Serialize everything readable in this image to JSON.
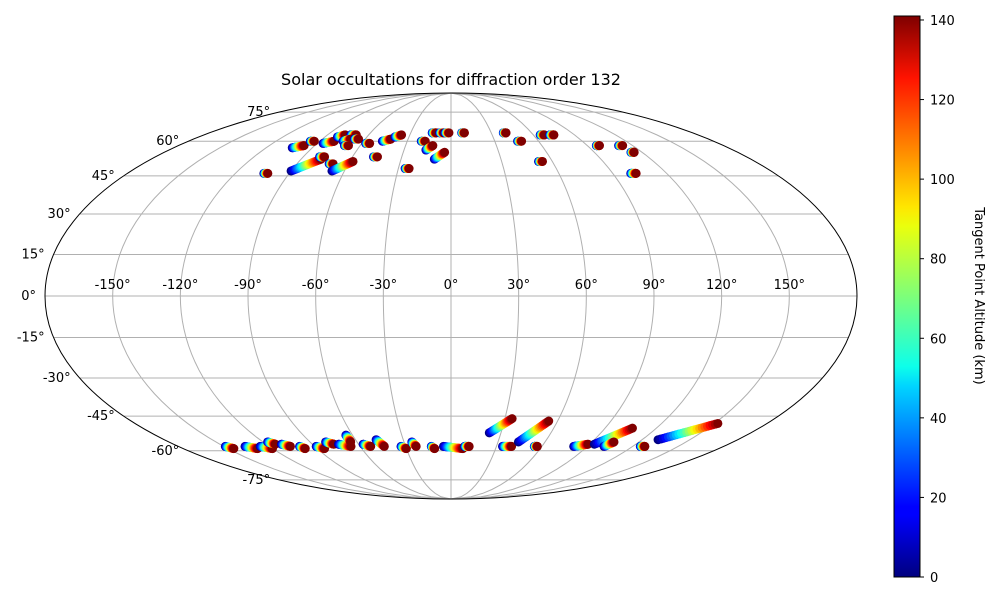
{
  "chart_data": {
    "type": "scatter",
    "projection": "mollweide",
    "title": "Solar occultations for diffraction order 132",
    "x_ticks": [
      "-150°",
      "-120°",
      "-90°",
      "-60°",
      "-30°",
      "0°",
      "30°",
      "60°",
      "90°",
      "120°",
      "150°"
    ],
    "x_tick_values": [
      -150,
      -120,
      -90,
      -60,
      -30,
      0,
      30,
      60,
      90,
      120,
      150
    ],
    "y_ticks": [
      "-75°",
      "-60°",
      "-45°",
      "-30°",
      "-15°",
      "0°",
      "15°",
      "30°",
      "45°",
      "60°",
      "75°"
    ],
    "y_tick_values": [
      -75,
      -60,
      -45,
      -30,
      -15,
      0,
      15,
      30,
      45,
      60,
      75
    ],
    "xlim": [
      -180,
      180
    ],
    "ylim": [
      -90,
      90
    ],
    "grid": true,
    "colorbar": {
      "label": "Tangent Point Altitude (km)",
      "range": [
        0,
        141
      ],
      "ticks": [
        "0",
        "20",
        "40",
        "60",
        "80",
        "100",
        "120",
        "140"
      ],
      "tick_values": [
        0,
        20,
        40,
        60,
        80,
        100,
        120,
        140
      ],
      "colormap": "jet"
    },
    "series": [
      {
        "lon": -103,
        "lat": 57,
        "lon2": -97,
        "lat2": 58
      },
      {
        "lon": -103,
        "lat": 46,
        "lon2": -103,
        "lat2": 46
      },
      {
        "lon": -95,
        "lat": 60,
        "lon2": -95,
        "lat2": 60
      },
      {
        "lon": -86,
        "lat": 59,
        "lon2": -80,
        "lat2": 60
      },
      {
        "lon": -90,
        "lat": 47,
        "lon2": -78,
        "lat2": 52
      },
      {
        "lon": -81,
        "lat": 62,
        "lon2": -77,
        "lat2": 63
      },
      {
        "lon": -80,
        "lat": 53,
        "lon2": -77,
        "lat2": 53
      },
      {
        "lon": -73,
        "lat": 63,
        "lon2": -69,
        "lat2": 63
      },
      {
        "lon": -74,
        "lat": 60,
        "lon2": -70,
        "lat2": 61
      },
      {
        "lon": -69,
        "lat": 58,
        "lon2": -69,
        "lat2": 58
      },
      {
        "lon": -70,
        "lat": 50,
        "lon2": -70,
        "lat2": 50
      },
      {
        "lon": -67,
        "lat": 47,
        "lon2": -58,
        "lat2": 51
      },
      {
        "lon": -66,
        "lat": 61,
        "lon2": -66,
        "lat2": 61
      },
      {
        "lon": -56,
        "lat": 59,
        "lon2": -56,
        "lat2": 59
      },
      {
        "lon": -47,
        "lat": 60,
        "lon2": -42,
        "lat2": 61
      },
      {
        "lon": -46,
        "lat": 53,
        "lon2": -46,
        "lat2": 53
      },
      {
        "lon": -40,
        "lat": 62,
        "lon2": -36,
        "lat2": 63
      },
      {
        "lon": -25,
        "lat": 48,
        "lon2": -25,
        "lat2": 48
      },
      {
        "lon": -19,
        "lat": 60,
        "lon2": -19,
        "lat2": 60
      },
      {
        "lon": -16,
        "lat": 56,
        "lon2": -12,
        "lat2": 58
      },
      {
        "lon": -14,
        "lat": 64,
        "lon2": -11,
        "lat2": 64
      },
      {
        "lon": -10,
        "lat": 52,
        "lon2": -4,
        "lat2": 55
      },
      {
        "lon": -7,
        "lat": 64,
        "lon2": -7,
        "lat2": 64
      },
      {
        "lon": -3,
        "lat": 64,
        "lon2": -3,
        "lat2": 64
      },
      {
        "lon": 8,
        "lat": 64,
        "lon2": 10,
        "lat2": 64
      },
      {
        "lon": 39,
        "lat": 64,
        "lon2": 41,
        "lat2": 64
      },
      {
        "lon": 47,
        "lat": 60,
        "lon2": 47,
        "lat2": 60
      },
      {
        "lon": 53,
        "lat": 51,
        "lon2": 54,
        "lat2": 51
      },
      {
        "lon": 65,
        "lat": 63,
        "lon2": 68,
        "lat2": 63
      },
      {
        "lon": 72,
        "lat": 63,
        "lon2": 75,
        "lat2": 63
      },
      {
        "lon": 96,
        "lat": 58,
        "lon2": 98,
        "lat2": 58
      },
      {
        "lon": 112,
        "lat": 58,
        "lon2": 112,
        "lat2": 58
      },
      {
        "lon": 113,
        "lat": 55,
        "lon2": 115,
        "lat2": 55
      },
      {
        "lon": 100,
        "lat": 46,
        "lon2": 103,
        "lat2": 46
      },
      {
        "lon": -149,
        "lat": -58,
        "lon2": -146,
        "lat2": -59
      },
      {
        "lon": -136,
        "lat": -58,
        "lon2": -130,
        "lat2": -59
      },
      {
        "lon": -126,
        "lat": -58,
        "lon2": -120,
        "lat2": -59
      },
      {
        "lon": -117,
        "lat": -56,
        "lon2": -114,
        "lat2": -57
      },
      {
        "lon": -110,
        "lat": -57,
        "lon2": -106,
        "lat2": -58
      },
      {
        "lon": -100,
        "lat": -58,
        "lon2": -98,
        "lat2": -59
      },
      {
        "lon": -89,
        "lat": -58,
        "lon2": -85,
        "lat2": -59
      },
      {
        "lon": -80,
        "lat": -56,
        "lon2": -76,
        "lat2": -57
      },
      {
        "lon": -73,
        "lat": -57,
        "lon2": -66,
        "lat2": -58
      },
      {
        "lon": -64,
        "lat": -53,
        "lon2": -64,
        "lat2": -56
      },
      {
        "lon": -57,
        "lat": -57,
        "lon2": -53,
        "lat2": -58
      },
      {
        "lon": -47,
        "lat": -55,
        "lon2": -44,
        "lat2": -58
      },
      {
        "lon": -33,
        "lat": -58,
        "lon2": -30,
        "lat2": -59
      },
      {
        "lon": -25,
        "lat": -56,
        "lon2": -23,
        "lat2": -58
      },
      {
        "lon": -13,
        "lat": -58,
        "lon2": -11,
        "lat2": -59
      },
      {
        "lon": -5,
        "lat": -58,
        "lon2": 8,
        "lat2": -59
      },
      {
        "lon": 9,
        "lat": -58,
        "lon2": 12,
        "lat2": -58
      },
      {
        "lon": 23,
        "lat": -52,
        "lon2": 34,
        "lat2": -46
      },
      {
        "lon": 34,
        "lat": -58,
        "lon2": 40,
        "lat2": -58
      },
      {
        "lon": 43,
        "lat": -56,
        "lon2": 55,
        "lat2": -47
      },
      {
        "lon": 55,
        "lat": -58,
        "lon2": 57,
        "lat2": -58
      },
      {
        "lon": 81,
        "lat": -58,
        "lon2": 89,
        "lat2": -57
      },
      {
        "lon": 93,
        "lat": -57,
        "lon2": 106,
        "lat2": -50
      },
      {
        "lon": 101,
        "lat": -58,
        "lon2": 104,
        "lat2": -56
      },
      {
        "lon": 125,
        "lat": -58,
        "lon2": 128,
        "lat2": -58
      },
      {
        "lon": 130,
        "lat": -55,
        "lon2": 152,
        "lat2": -48
      }
    ]
  }
}
